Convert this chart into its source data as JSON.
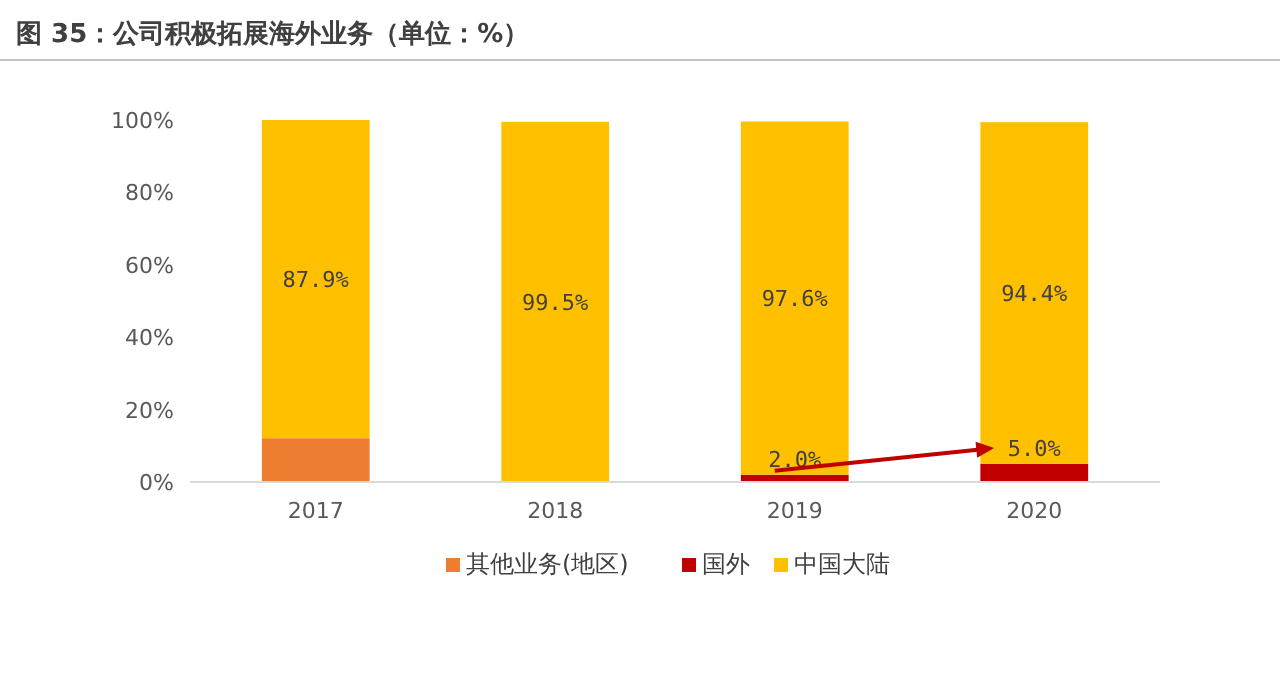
{
  "chart_data": {
    "type": "bar",
    "title": "图 35：公司积极拓展海外业务（单位：%）",
    "categories": [
      "2017",
      "2018",
      "2019",
      "2020"
    ],
    "stacked": true,
    "legend": "bottom",
    "grid": false,
    "ylim": [
      0,
      100
    ],
    "yticks": [
      {
        "value": 0,
        "label": "0%"
      },
      {
        "value": 20,
        "label": "20%"
      },
      {
        "value": 40,
        "label": "40%"
      },
      {
        "value": 60,
        "label": "60%"
      },
      {
        "value": 80,
        "label": "80%"
      },
      {
        "value": 100,
        "label": "100%"
      }
    ],
    "series": [
      {
        "name": "其他业务(地区)",
        "color": "#ed7d31",
        "values": [
          12.1,
          null,
          null,
          null
        ],
        "value_labels": [
          null,
          null,
          null,
          null
        ]
      },
      {
        "name": "国外",
        "color": "#c00000",
        "values": [
          0,
          0,
          2.0,
          5.0
        ],
        "value_labels": [
          null,
          null,
          "2.0%",
          "5.0%"
        ]
      },
      {
        "name": "中国大陆",
        "color": "#ffc000",
        "values": [
          87.9,
          99.5,
          97.6,
          94.4
        ],
        "value_labels": [
          "87.9%",
          "99.5%",
          "97.6%",
          "94.4%"
        ]
      }
    ]
  }
}
